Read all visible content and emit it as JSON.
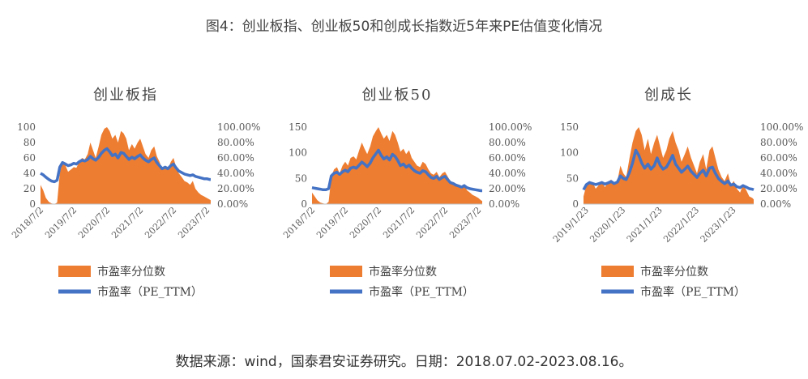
{
  "figure": {
    "title": "图4：创业板指、创业板50和创成长指数近5年来PE估值变化情况",
    "source": "数据来源：wind，国泰君安证券研究。日期：2018.07.02-2023.08.16。"
  },
  "chart_data": [
    {
      "type": "area",
      "title": "创业板指",
      "x_ticks": [
        "2018/7/2",
        "2019/7/2",
        "2020/7/2",
        "2021/7/2",
        "2022/7/2",
        "2023/7/2"
      ],
      "x_range": [
        2018.5,
        2023.62
      ],
      "y_left": {
        "ylim": [
          0,
          100
        ],
        "ticks": [
          "0",
          "20",
          "40",
          "60",
          "80",
          "100"
        ]
      },
      "y_right": {
        "ylim": [
          0,
          100
        ],
        "ticks": [
          "0.00%",
          "20.00%",
          "40.00%",
          "60.00%",
          "80.00%",
          "100.00%"
        ]
      },
      "legend_position": "bottom",
      "series": [
        {
          "name": "市盈率分位数",
          "axis": "right",
          "kind": "area",
          "color": "#ED7D31",
          "x": [
            2018.5,
            2018.58,
            2018.66,
            2018.75,
            2018.83,
            2018.92,
            2019.0,
            2019.08,
            2019.16,
            2019.25,
            2019.33,
            2019.42,
            2019.5,
            2019.58,
            2019.66,
            2019.75,
            2019.83,
            2019.92,
            2020.0,
            2020.08,
            2020.16,
            2020.25,
            2020.33,
            2020.42,
            2020.5,
            2020.58,
            2020.66,
            2020.75,
            2020.83,
            2020.92,
            2021.0,
            2021.08,
            2021.16,
            2021.25,
            2021.33,
            2021.42,
            2021.5,
            2021.58,
            2021.66,
            2021.75,
            2021.83,
            2021.92,
            2022.0,
            2022.08,
            2022.16,
            2022.25,
            2022.33,
            2022.42,
            2022.5,
            2022.58,
            2022.66,
            2022.75,
            2022.83,
            2022.92,
            2023.0,
            2023.08,
            2023.16,
            2023.25,
            2023.33,
            2023.42,
            2023.5,
            2023.58,
            2023.62
          ],
          "values": [
            25,
            18,
            8,
            3,
            1,
            0,
            2,
            40,
            55,
            50,
            42,
            45,
            48,
            47,
            55,
            60,
            58,
            65,
            80,
            70,
            60,
            75,
            90,
            98,
            100,
            95,
            85,
            90,
            80,
            95,
            92,
            85,
            70,
            78,
            72,
            80,
            85,
            75,
            65,
            60,
            70,
            75,
            62,
            55,
            45,
            50,
            45,
            55,
            60,
            48,
            40,
            35,
            30,
            28,
            25,
            30,
            20,
            15,
            12,
            10,
            8,
            6,
            5
          ]
        },
        {
          "name": "市盈率（PE_TTM）",
          "axis": "left",
          "kind": "line",
          "color": "#4472C4",
          "x": [
            2018.5,
            2018.58,
            2018.66,
            2018.75,
            2018.83,
            2018.92,
            2019.0,
            2019.08,
            2019.16,
            2019.25,
            2019.33,
            2019.42,
            2019.5,
            2019.58,
            2019.66,
            2019.75,
            2019.83,
            2019.92,
            2020.0,
            2020.08,
            2020.16,
            2020.25,
            2020.33,
            2020.42,
            2020.5,
            2020.58,
            2020.66,
            2020.75,
            2020.83,
            2020.92,
            2021.0,
            2021.08,
            2021.16,
            2021.25,
            2021.33,
            2021.42,
            2021.5,
            2021.58,
            2021.66,
            2021.75,
            2021.83,
            2021.92,
            2022.0,
            2022.08,
            2022.16,
            2022.25,
            2022.33,
            2022.42,
            2022.5,
            2022.58,
            2022.66,
            2022.75,
            2022.83,
            2022.92,
            2023.0,
            2023.08,
            2023.16,
            2023.25,
            2023.33,
            2023.42,
            2023.5,
            2023.58,
            2023.62
          ],
          "values": [
            40,
            38,
            35,
            32,
            30,
            29,
            31,
            48,
            54,
            52,
            50,
            51,
            53,
            52,
            55,
            57,
            56,
            58,
            62,
            59,
            57,
            61,
            66,
            70,
            72,
            68,
            63,
            65,
            60,
            67,
            66,
            62,
            58,
            61,
            59,
            62,
            64,
            60,
            57,
            55,
            58,
            60,
            54,
            50,
            46,
            48,
            46,
            50,
            52,
            47,
            43,
            41,
            39,
            38,
            37,
            38,
            36,
            35,
            34,
            33,
            33,
            32,
            32
          ]
        }
      ]
    },
    {
      "type": "area",
      "title": "创业板50",
      "x_ticks": [
        "2018/7/2",
        "2019/7/2",
        "2020/7/2",
        "2021/7/2",
        "2022/7/2",
        "2023/7/2"
      ],
      "x_range": [
        2018.5,
        2023.62
      ],
      "y_left": {
        "ylim": [
          0,
          150
        ],
        "ticks": [
          "0",
          "50",
          "100",
          "150"
        ]
      },
      "y_right": {
        "ylim": [
          0,
          100
        ],
        "ticks": [
          "0.00%",
          "20.00%",
          "40.00%",
          "60.00%",
          "80.00%",
          "100.00%"
        ]
      },
      "legend_position": "bottom",
      "series": [
        {
          "name": "市盈率分位数",
          "axis": "right",
          "kind": "area",
          "color": "#ED7D31",
          "x": [
            2018.5,
            2018.58,
            2018.66,
            2018.75,
            2018.83,
            2018.92,
            2019.0,
            2019.08,
            2019.16,
            2019.25,
            2019.33,
            2019.42,
            2019.5,
            2019.58,
            2019.66,
            2019.75,
            2019.83,
            2019.92,
            2020.0,
            2020.08,
            2020.16,
            2020.25,
            2020.33,
            2020.42,
            2020.5,
            2020.58,
            2020.66,
            2020.75,
            2020.83,
            2020.92,
            2021.0,
            2021.08,
            2021.16,
            2021.25,
            2021.33,
            2021.42,
            2021.5,
            2021.58,
            2021.66,
            2021.75,
            2021.83,
            2021.92,
            2022.0,
            2022.08,
            2022.16,
            2022.25,
            2022.33,
            2022.42,
            2022.5,
            2022.58,
            2022.66,
            2022.75,
            2022.83,
            2022.92,
            2023.0,
            2023.08,
            2023.16,
            2023.25,
            2023.33,
            2023.42,
            2023.5,
            2023.58,
            2023.62
          ],
          "values": [
            15,
            10,
            5,
            2,
            1,
            0,
            3,
            35,
            45,
            48,
            40,
            50,
            55,
            50,
            60,
            62,
            58,
            70,
            80,
            72,
            65,
            75,
            88,
            95,
            100,
            92,
            85,
            90,
            82,
            95,
            90,
            80,
            68,
            72,
            65,
            70,
            60,
            55,
            50,
            48,
            55,
            52,
            45,
            40,
            38,
            42,
            35,
            40,
            42,
            36,
            30,
            28,
            25,
            22,
            20,
            25,
            18,
            15,
            12,
            10,
            8,
            5,
            4
          ]
        },
        {
          "name": "市盈率（PE_TTM）",
          "axis": "left",
          "kind": "line",
          "color": "#4472C4",
          "x": [
            2018.5,
            2018.58,
            2018.66,
            2018.75,
            2018.83,
            2018.92,
            2019.0,
            2019.08,
            2019.16,
            2019.25,
            2019.33,
            2019.42,
            2019.5,
            2019.58,
            2019.66,
            2019.75,
            2019.83,
            2019.92,
            2020.0,
            2020.08,
            2020.16,
            2020.25,
            2020.33,
            2020.42,
            2020.5,
            2020.58,
            2020.66,
            2020.75,
            2020.83,
            2020.92,
            2021.0,
            2021.08,
            2021.16,
            2021.25,
            2021.33,
            2021.42,
            2021.5,
            2021.58,
            2021.66,
            2021.75,
            2021.83,
            2021.92,
            2022.0,
            2022.08,
            2022.16,
            2022.25,
            2022.33,
            2022.42,
            2022.5,
            2022.58,
            2022.66,
            2022.75,
            2022.83,
            2022.92,
            2023.0,
            2023.08,
            2023.16,
            2023.25,
            2023.33,
            2023.42,
            2023.5,
            2023.58,
            2023.62
          ],
          "values": [
            32,
            31,
            30,
            29,
            28,
            28,
            30,
            55,
            60,
            62,
            58,
            63,
            66,
            63,
            70,
            72,
            70,
            76,
            82,
            78,
            73,
            80,
            90,
            98,
            105,
            95,
            88,
            92,
            86,
            97,
            93,
            85,
            75,
            78,
            72,
            76,
            70,
            65,
            62,
            60,
            65,
            63,
            57,
            52,
            50,
            54,
            48,
            52,
            54,
            48,
            42,
            40,
            37,
            35,
            33,
            36,
            32,
            30,
            29,
            28,
            27,
            26,
            26
          ]
        }
      ]
    },
    {
      "type": "area",
      "title": "创成长",
      "x_ticks": [
        "2019/1/23",
        "2020/1/23",
        "2021/1/23",
        "2022/1/23",
        "2023/1/23"
      ],
      "x_range": [
        2019.0,
        2023.62
      ],
      "y_left": {
        "ylim": [
          0,
          150
        ],
        "ticks": [
          "0",
          "50",
          "100",
          "150"
        ]
      },
      "y_right": {
        "ylim": [
          0,
          100
        ],
        "ticks": [
          "0.00%",
          "20.00%",
          "40.00%",
          "60.00%",
          "80.00%",
          "100.00%"
        ]
      },
      "legend_position": "bottom",
      "series": [
        {
          "name": "市盈率分位数",
          "axis": "right",
          "kind": "area",
          "color": "#ED7D31",
          "x": [
            2019.0,
            2019.08,
            2019.16,
            2019.25,
            2019.33,
            2019.42,
            2019.5,
            2019.58,
            2019.66,
            2019.75,
            2019.83,
            2019.92,
            2020.0,
            2020.08,
            2020.16,
            2020.25,
            2020.33,
            2020.42,
            2020.5,
            2020.58,
            2020.66,
            2020.75,
            2020.83,
            2020.92,
            2021.0,
            2021.08,
            2021.16,
            2021.25,
            2021.33,
            2021.42,
            2021.5,
            2021.58,
            2021.66,
            2021.75,
            2021.83,
            2021.92,
            2022.0,
            2022.08,
            2022.16,
            2022.25,
            2022.33,
            2022.42,
            2022.5,
            2022.58,
            2022.66,
            2022.75,
            2022.83,
            2022.92,
            2023.0,
            2023.08,
            2023.16,
            2023.25,
            2023.33,
            2023.42,
            2023.5,
            2023.58,
            2023.62
          ],
          "values": [
            10,
            25,
            30,
            28,
            20,
            25,
            30,
            22,
            28,
            32,
            25,
            30,
            50,
            40,
            35,
            60,
            80,
            95,
            100,
            90,
            70,
            85,
            65,
            80,
            90,
            75,
            60,
            70,
            85,
            95,
            80,
            70,
            55,
            65,
            75,
            60,
            50,
            40,
            55,
            65,
            45,
            70,
            75,
            60,
            45,
            35,
            30,
            40,
            25,
            30,
            20,
            15,
            25,
            18,
            10,
            8,
            6
          ]
        },
        {
          "name": "市盈率（PE_TTM）",
          "axis": "left",
          "kind": "line",
          "color": "#4472C4",
          "x": [
            2019.0,
            2019.08,
            2019.16,
            2019.25,
            2019.33,
            2019.42,
            2019.5,
            2019.58,
            2019.66,
            2019.75,
            2019.83,
            2019.92,
            2020.0,
            2020.08,
            2020.16,
            2020.25,
            2020.33,
            2020.42,
            2020.5,
            2020.58,
            2020.66,
            2020.75,
            2020.83,
            2020.92,
            2021.0,
            2021.08,
            2021.16,
            2021.25,
            2021.33,
            2021.42,
            2021.5,
            2021.58,
            2021.66,
            2021.75,
            2021.83,
            2021.92,
            2022.0,
            2022.08,
            2022.16,
            2022.25,
            2022.33,
            2022.42,
            2022.5,
            2022.58,
            2022.66,
            2022.75,
            2022.83,
            2022.92,
            2023.0,
            2023.08,
            2023.16,
            2023.25,
            2023.33,
            2023.42,
            2023.5,
            2023.58,
            2023.62
          ],
          "values": [
            28,
            38,
            42,
            40,
            38,
            40,
            42,
            39,
            41,
            44,
            40,
            43,
            55,
            50,
            48,
            62,
            80,
            105,
            95,
            80,
            70,
            78,
            68,
            75,
            90,
            76,
            68,
            72,
            82,
            95,
            78,
            70,
            62,
            68,
            74,
            64,
            58,
            52,
            60,
            66,
            55,
            70,
            72,
            60,
            50,
            44,
            40,
            45,
            37,
            39,
            34,
            32,
            36,
            33,
            30,
            29,
            28
          ]
        }
      ]
    }
  ]
}
